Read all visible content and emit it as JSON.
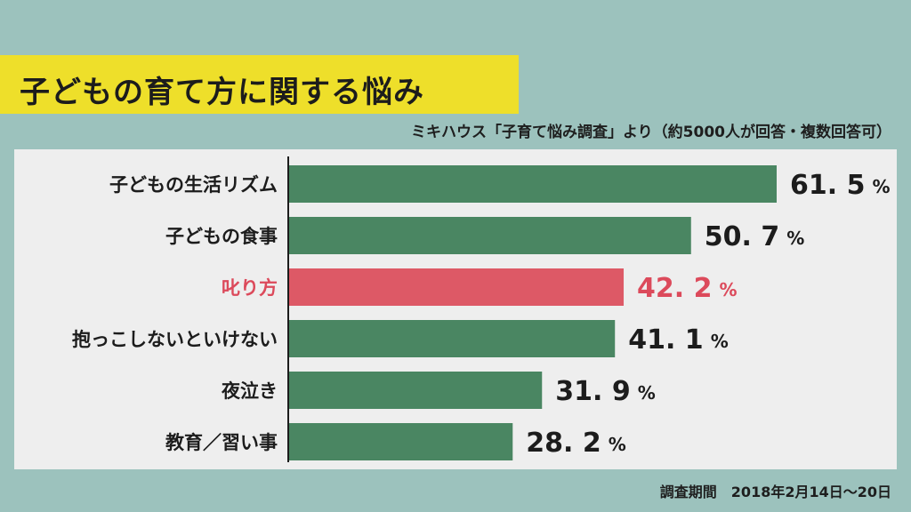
{
  "title": "子どもの育て方に関する悩み",
  "source": "ミキハウス「子育て悩み調査」より（約5000人が回答・複数回答可）",
  "period": "調査期間　2018年2月14日～20日",
  "colors": {
    "bar": "#4a8662",
    "highlight_bar": "#dd5966",
    "highlight_text": "#dc4a5b",
    "text": "#1c1c1c",
    "title_bg": "#eedf2a",
    "page_bg": "#9cc2bd",
    "panel_bg": "#eeeeee"
  },
  "chart_data": {
    "type": "bar",
    "orientation": "horizontal",
    "categories": [
      "子どもの生活リズム",
      "子どもの食事",
      "叱り方",
      "抱っこしないといけない",
      "夜泣き",
      "教育／習い事"
    ],
    "values": [
      61.5,
      50.7,
      42.2,
      41.1,
      31.9,
      28.2
    ],
    "value_labels": [
      "61. 5",
      "50. 7",
      "42. 2",
      "41. 1",
      "31. 9",
      "28. 2"
    ],
    "unit": "%",
    "highlight_index": 2,
    "xlim": [
      0,
      61.5
    ],
    "grid": false,
    "title": "子どもの育て方に関する悩み"
  }
}
